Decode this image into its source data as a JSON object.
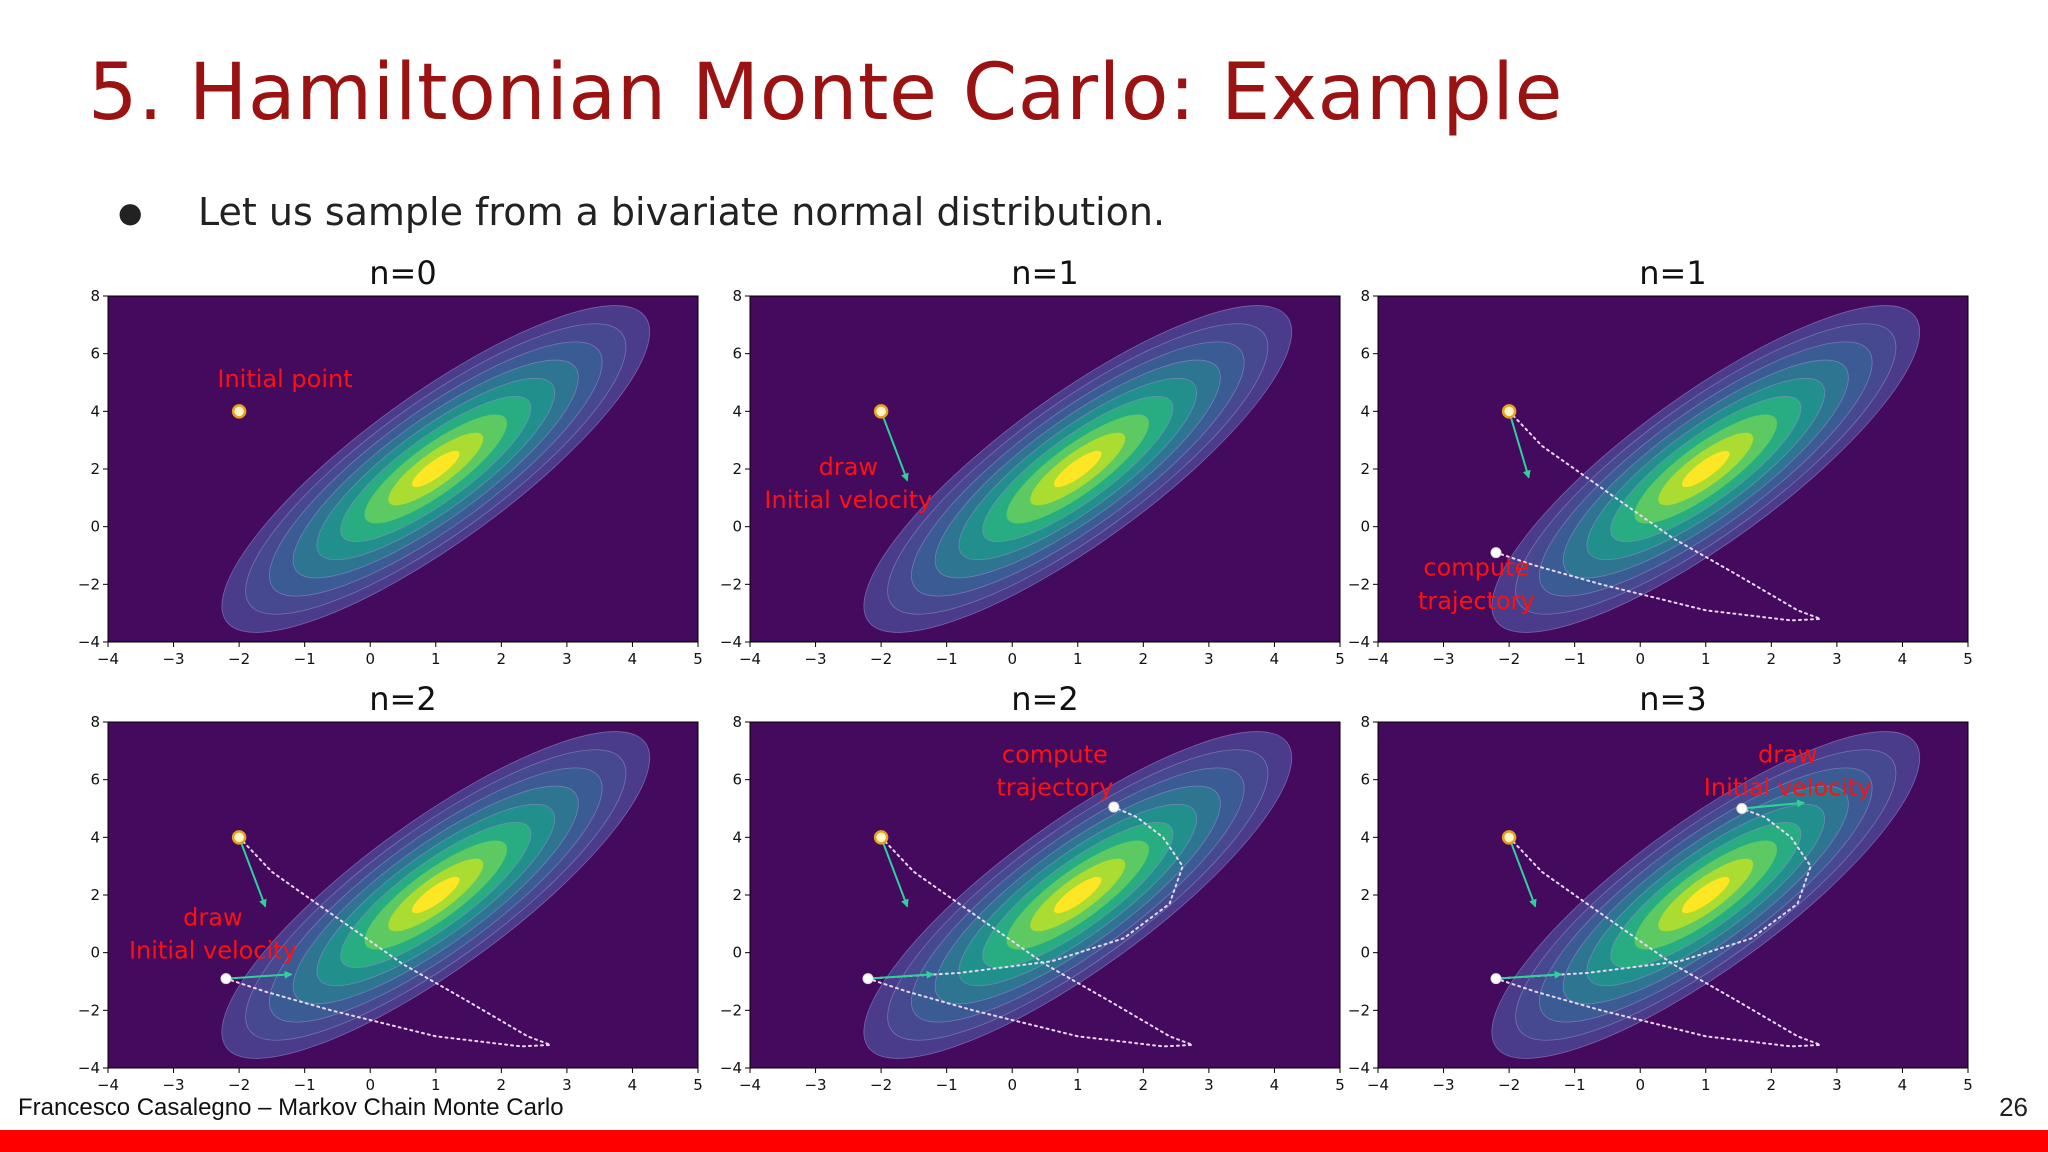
{
  "slide": {
    "title": "5. Hamiltonian Monte Carlo: Example",
    "bullet": "Let us sample from a bivariate normal distribution.",
    "footer": "Francesco Casalegno – Markov Chain Monte Carlo",
    "page_number": "26"
  },
  "colors": {
    "title": "#9b1212",
    "background": "#440a5e",
    "annotation": "#ff1010",
    "arrow": "#2fd19a",
    "trajectory": "#e8d8f0",
    "contours": [
      "#4a3c8b",
      "#46498f",
      "#3b5b94",
      "#2e7591",
      "#21908d",
      "#27ad81",
      "#5dc963",
      "#aadc32",
      "#fde725"
    ],
    "bottom_bar": "#ff0000"
  },
  "chart_data": [
    {
      "type": "contour",
      "title": "n=0",
      "xlim": [
        -4,
        5
      ],
      "ylim": [
        -4,
        8
      ],
      "xticks": [
        "−4",
        "−3",
        "−2",
        "−1",
        "0",
        "1",
        "2",
        "3",
        "4",
        "5"
      ],
      "yticks": [
        "−4",
        "−2",
        "0",
        "2",
        "4",
        "6",
        "8"
      ],
      "contour_center": [
        1,
        2
      ],
      "points": [
        {
          "x": -2,
          "y": 4,
          "style": "initial"
        }
      ],
      "arrows": [],
      "trajectories": [],
      "annotations": [
        {
          "text": "Initial point",
          "x": -1.3,
          "y": 4.85
        }
      ]
    },
    {
      "type": "contour",
      "title": "n=1",
      "xlim": [
        -4,
        5
      ],
      "ylim": [
        -4,
        8
      ],
      "xticks": [
        "−4",
        "−3",
        "−2",
        "−1",
        "0",
        "1",
        "2",
        "3",
        "4",
        "5"
      ],
      "yticks": [
        "−4",
        "−2",
        "0",
        "2",
        "4",
        "6",
        "8"
      ],
      "contour_center": [
        1,
        2
      ],
      "points": [
        {
          "x": -2,
          "y": 4,
          "style": "initial"
        }
      ],
      "arrows": [
        {
          "x0": -2,
          "y0": 4,
          "x1": -1.6,
          "y1": 1.6
        }
      ],
      "trajectories": [],
      "annotations": [
        {
          "text": "draw",
          "x": -2.5,
          "y": 1.8
        },
        {
          "text": "Initial velocity",
          "x": -2.5,
          "y": 0.65
        }
      ]
    },
    {
      "type": "contour",
      "title": "n=1",
      "xlim": [
        -4,
        5
      ],
      "ylim": [
        -4,
        8
      ],
      "xticks": [
        "−4",
        "−3",
        "−2",
        "−1",
        "0",
        "1",
        "2",
        "3",
        "4",
        "5"
      ],
      "yticks": [
        "−4",
        "−2",
        "0",
        "2",
        "4",
        "6",
        "8"
      ],
      "contour_center": [
        1,
        2
      ],
      "points": [
        {
          "x": -2,
          "y": 4,
          "style": "initial"
        },
        {
          "x": -2.2,
          "y": -0.9,
          "style": "proposal"
        }
      ],
      "arrows": [
        {
          "x0": -2,
          "y0": 4,
          "x1": -1.7,
          "y1": 1.7
        }
      ],
      "trajectories": [
        [
          [
            -2,
            4
          ],
          [
            -1.5,
            2.8
          ],
          [
            -0.5,
            1.2
          ],
          [
            0.5,
            -0.4
          ],
          [
            1.5,
            -1.7
          ],
          [
            2.4,
            -2.9
          ],
          [
            2.75,
            -3.2
          ],
          [
            2.3,
            -3.25
          ],
          [
            1.0,
            -2.9
          ],
          [
            -0.6,
            -2.0
          ],
          [
            -1.6,
            -1.35
          ],
          [
            -2.2,
            -0.9
          ]
        ]
      ],
      "annotations": [
        {
          "text": "compute",
          "x": -2.5,
          "y": -1.7
        },
        {
          "text": "trajectory",
          "x": -2.5,
          "y": -2.85
        }
      ]
    },
    {
      "type": "contour",
      "title": "n=2",
      "xlim": [
        -4,
        5
      ],
      "ylim": [
        -4,
        8
      ],
      "xticks": [
        "−4",
        "−3",
        "−2",
        "−1",
        "0",
        "1",
        "2",
        "3",
        "4",
        "5"
      ],
      "yticks": [
        "−4",
        "−2",
        "0",
        "2",
        "4",
        "6",
        "8"
      ],
      "contour_center": [
        1,
        2
      ],
      "points": [
        {
          "x": -2,
          "y": 4,
          "style": "initial"
        },
        {
          "x": -2.2,
          "y": -0.9,
          "style": "proposal"
        }
      ],
      "arrows": [
        {
          "x0": -2,
          "y0": 4,
          "x1": -1.6,
          "y1": 1.6
        },
        {
          "x0": -2.2,
          "y0": -0.9,
          "x1": -1.2,
          "y1": -0.75
        }
      ],
      "trajectories": [
        [
          [
            -2,
            4
          ],
          [
            -1.5,
            2.8
          ],
          [
            -0.5,
            1.2
          ],
          [
            0.5,
            -0.4
          ],
          [
            1.5,
            -1.7
          ],
          [
            2.4,
            -2.9
          ],
          [
            2.75,
            -3.2
          ],
          [
            2.3,
            -3.25
          ],
          [
            1.0,
            -2.9
          ],
          [
            -0.6,
            -2.0
          ],
          [
            -1.6,
            -1.35
          ],
          [
            -2.2,
            -0.9
          ]
        ]
      ],
      "annotations": [
        {
          "text": "draw",
          "x": -2.4,
          "y": 0.95
        },
        {
          "text": "Initial velocity",
          "x": -2.4,
          "y": -0.2
        }
      ]
    },
    {
      "type": "contour",
      "title": "n=2",
      "xlim": [
        -4,
        5
      ],
      "ylim": [
        -4,
        8
      ],
      "xticks": [
        "−4",
        "−3",
        "−2",
        "−1",
        "0",
        "1",
        "2",
        "3",
        "4",
        "5"
      ],
      "yticks": [
        "−4",
        "−2",
        "0",
        "2",
        "4",
        "6",
        "8"
      ],
      "contour_center": [
        1,
        2
      ],
      "points": [
        {
          "x": -2,
          "y": 4,
          "style": "initial"
        },
        {
          "x": -2.2,
          "y": -0.9,
          "style": "proposal"
        },
        {
          "x": 1.55,
          "y": 5.05,
          "style": "proposal"
        }
      ],
      "arrows": [
        {
          "x0": -2,
          "y0": 4,
          "x1": -1.6,
          "y1": 1.6
        },
        {
          "x0": -2.2,
          "y0": -0.9,
          "x1": -1.2,
          "y1": -0.75
        }
      ],
      "trajectories": [
        [
          [
            -2,
            4
          ],
          [
            -1.5,
            2.8
          ],
          [
            -0.5,
            1.2
          ],
          [
            0.5,
            -0.4
          ],
          [
            1.5,
            -1.7
          ],
          [
            2.4,
            -2.9
          ],
          [
            2.75,
            -3.2
          ],
          [
            2.3,
            -3.25
          ],
          [
            1.0,
            -2.9
          ],
          [
            -0.6,
            -2.0
          ],
          [
            -1.6,
            -1.35
          ],
          [
            -2.2,
            -0.9
          ]
        ],
        [
          [
            -2.2,
            -0.9
          ],
          [
            -0.8,
            -0.7
          ],
          [
            0.6,
            -0.3
          ],
          [
            1.7,
            0.5
          ],
          [
            2.4,
            1.7
          ],
          [
            2.6,
            3.0
          ],
          [
            2.3,
            4.0
          ],
          [
            1.9,
            4.7
          ],
          [
            1.55,
            5.05
          ]
        ]
      ],
      "annotations": [
        {
          "text": "compute",
          "x": 0.65,
          "y": 6.6
        },
        {
          "text": "trajectory",
          "x": 0.65,
          "y": 5.45
        }
      ]
    },
    {
      "type": "contour",
      "title": "n=3",
      "xlim": [
        -4,
        5
      ],
      "ylim": [
        -4,
        8
      ],
      "xticks": [
        "−4",
        "−3",
        "−2",
        "−1",
        "0",
        "1",
        "2",
        "3",
        "4",
        "5"
      ],
      "yticks": [
        "−4",
        "−2",
        "0",
        "2",
        "4",
        "6",
        "8"
      ],
      "contour_center": [
        1,
        2
      ],
      "points": [
        {
          "x": -2,
          "y": 4,
          "style": "initial"
        },
        {
          "x": -2.2,
          "y": -0.9,
          "style": "proposal"
        },
        {
          "x": 1.55,
          "y": 5.0,
          "style": "proposal"
        }
      ],
      "arrows": [
        {
          "x0": -2,
          "y0": 4,
          "x1": -1.6,
          "y1": 1.6
        },
        {
          "x0": -2.2,
          "y0": -0.9,
          "x1": -1.2,
          "y1": -0.75
        },
        {
          "x0": 1.55,
          "y0": 5.0,
          "x1": 2.5,
          "y1": 5.2
        }
      ],
      "trajectories": [
        [
          [
            -2,
            4
          ],
          [
            -1.5,
            2.8
          ],
          [
            -0.5,
            1.2
          ],
          [
            0.5,
            -0.4
          ],
          [
            1.5,
            -1.7
          ],
          [
            2.4,
            -2.9
          ],
          [
            2.75,
            -3.2
          ],
          [
            2.3,
            -3.25
          ],
          [
            1.0,
            -2.9
          ],
          [
            -0.6,
            -2.0
          ],
          [
            -1.6,
            -1.35
          ],
          [
            -2.2,
            -0.9
          ]
        ],
        [
          [
            -2.2,
            -0.9
          ],
          [
            -0.8,
            -0.7
          ],
          [
            0.6,
            -0.3
          ],
          [
            1.7,
            0.5
          ],
          [
            2.4,
            1.7
          ],
          [
            2.6,
            3.0
          ],
          [
            2.3,
            4.0
          ],
          [
            1.9,
            4.7
          ],
          [
            1.55,
            5.0
          ]
        ]
      ],
      "annotations": [
        {
          "text": "draw",
          "x": 2.25,
          "y": 6.6
        },
        {
          "text": "Initial velocity",
          "x": 2.25,
          "y": 5.45
        }
      ]
    }
  ]
}
